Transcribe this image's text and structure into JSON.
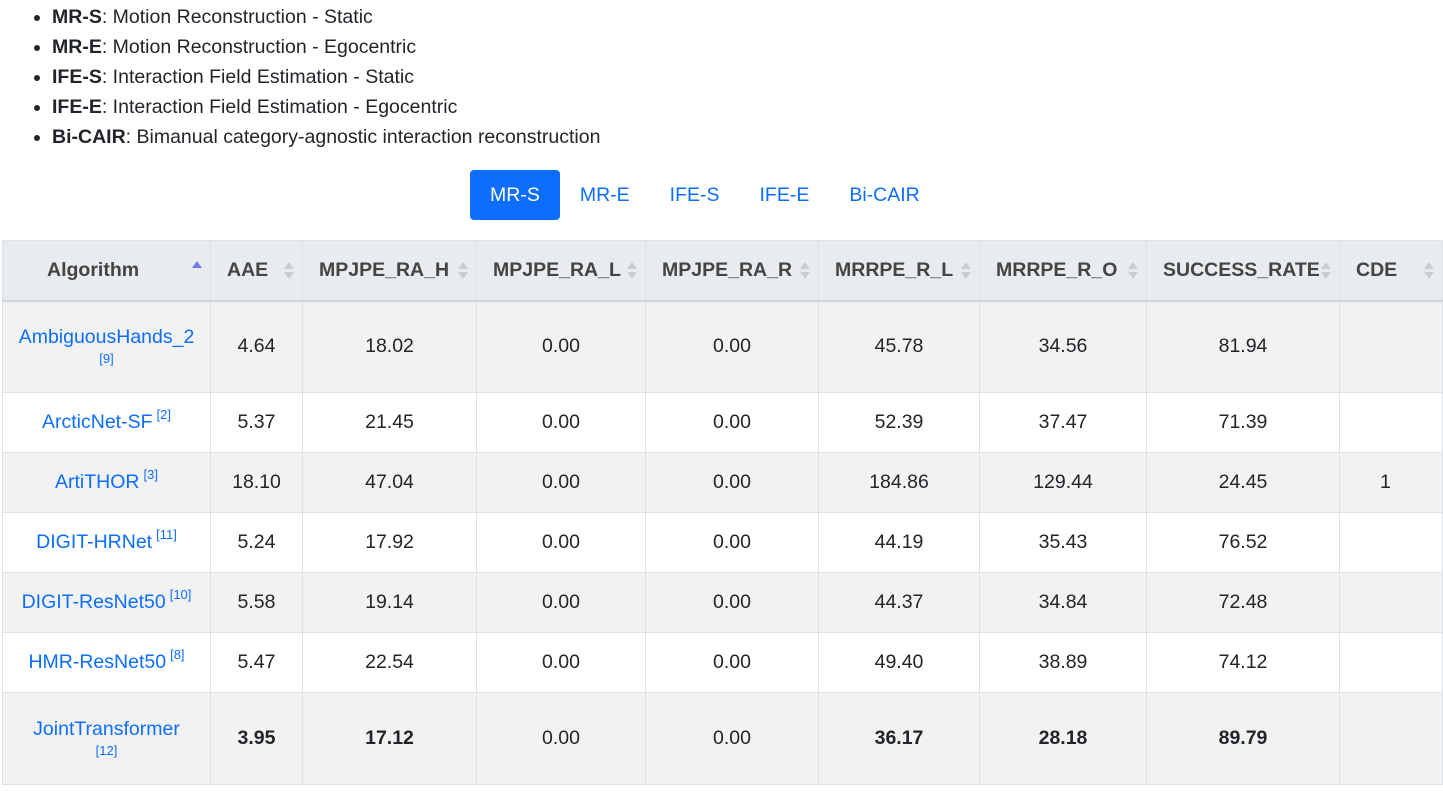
{
  "legend": [
    {
      "abbr": "MR-S",
      "desc": ": Motion Reconstruction - Static"
    },
    {
      "abbr": "MR-E",
      "desc": ": Motion Reconstruction - Egocentric"
    },
    {
      "abbr": "IFE-S",
      "desc": ": Interaction Field Estimation - Static"
    },
    {
      "abbr": "IFE-E",
      "desc": ": Interaction Field Estimation - Egocentric"
    },
    {
      "abbr": "Bi-CAIR",
      "desc": ": Bimanual category-agnostic interaction reconstruction"
    }
  ],
  "tabs": [
    {
      "label": "MR-S",
      "active": true
    },
    {
      "label": "MR-E",
      "active": false
    },
    {
      "label": "IFE-S",
      "active": false
    },
    {
      "label": "IFE-E",
      "active": false
    },
    {
      "label": "Bi-CAIR",
      "active": false
    }
  ],
  "table": {
    "columns": [
      "Algorithm",
      "AAE",
      "MPJPE_RA_H",
      "MPJPE_RA_L",
      "MPJPE_RA_R",
      "MRRPE_R_L",
      "MRRPE_R_O",
      "SUCCESS_RATE",
      "CDE"
    ],
    "sorted_column": "Algorithm",
    "sort_direction": "ascending",
    "rows": [
      {
        "name": "AmbiguousHands_2",
        "ref": "[9]",
        "ref_inline": false,
        "values": [
          "4.64",
          "18.02",
          "0.00",
          "0.00",
          "45.78",
          "34.56",
          "81.94",
          ""
        ],
        "bold": false
      },
      {
        "name": "ArcticNet-SF",
        "ref": "[2]",
        "ref_inline": true,
        "values": [
          "5.37",
          "21.45",
          "0.00",
          "0.00",
          "52.39",
          "37.47",
          "71.39",
          ""
        ],
        "bold": false
      },
      {
        "name": "ArtiTHOR",
        "ref": "[3]",
        "ref_inline": true,
        "values": [
          "18.10",
          "47.04",
          "0.00",
          "0.00",
          "184.86",
          "129.44",
          "24.45",
          "1"
        ],
        "bold": false
      },
      {
        "name": "DIGIT-HRNet",
        "ref": "[11]",
        "ref_inline": true,
        "values": [
          "5.24",
          "17.92",
          "0.00",
          "0.00",
          "44.19",
          "35.43",
          "76.52",
          ""
        ],
        "bold": false
      },
      {
        "name": "DIGIT-ResNet50",
        "ref": "[10]",
        "ref_inline": true,
        "values": [
          "5.58",
          "19.14",
          "0.00",
          "0.00",
          "44.37",
          "34.84",
          "72.48",
          ""
        ],
        "bold": false
      },
      {
        "name": "HMR-ResNet50",
        "ref": "[8]",
        "ref_inline": true,
        "values": [
          "5.47",
          "22.54",
          "0.00",
          "0.00",
          "49.40",
          "38.89",
          "74.12",
          ""
        ],
        "bold": false
      },
      {
        "name": "JointTransformer",
        "ref": "[12]",
        "ref_inline": false,
        "values": [
          "3.95",
          "17.12",
          "0.00",
          "0.00",
          "36.17",
          "28.18",
          "89.79",
          ""
        ],
        "bold": true
      }
    ]
  }
}
